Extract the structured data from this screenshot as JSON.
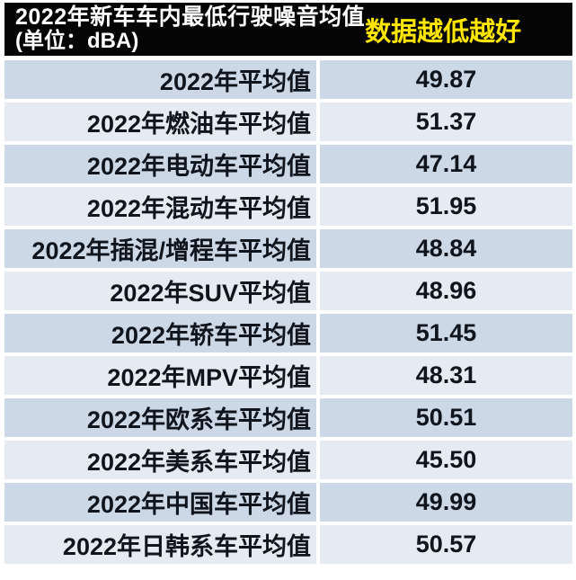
{
  "header": {
    "title_line1": "2022年新车车内最低行驶噪音均值",
    "title_line2": "(单位：dBA)",
    "note": "数据越低越好",
    "bg_color": "#050505",
    "title_color": "#ffffff",
    "note_color": "#fee502"
  },
  "table": {
    "row_alt_colors": [
      "#ccd8e6",
      "#e6ebf3"
    ],
    "text_color": "#10141c",
    "rows": [
      {
        "label": "2022年平均值",
        "value": "49.87"
      },
      {
        "label": "2022年燃油车平均值",
        "value": "51.37"
      },
      {
        "label": "2022年电动车平均值",
        "value": "47.14"
      },
      {
        "label": "2022年混动车平均值",
        "value": "51.95"
      },
      {
        "label": "2022年插混/增程车平均值",
        "value": "48.84"
      },
      {
        "label": "2022年SUV平均值",
        "value": "48.96"
      },
      {
        "label": "2022年轿车平均值",
        "value": "51.45"
      },
      {
        "label": "2022年MPV平均值",
        "value": "48.31"
      },
      {
        "label": "2022年欧系车平均值",
        "value": "50.51"
      },
      {
        "label": "2022年美系车平均值",
        "value": "45.50"
      },
      {
        "label": "2022年中国车平均值",
        "value": "49.99"
      },
      {
        "label": "2022年日韩系车平均值",
        "value": "50.57"
      }
    ]
  },
  "chart_data": {
    "type": "table",
    "title": "2022年新车车内最低行驶噪音均值",
    "unit_label": "(单位：dBA)",
    "annotation": "数据越低越好",
    "unit": "dBA",
    "categories": [
      "2022年平均值",
      "2022年燃油车平均值",
      "2022年电动车平均值",
      "2022年混动车平均值",
      "2022年插混/增程车平均值",
      "2022年SUV平均值",
      "2022年轿车平均值",
      "2022年MPV平均值",
      "2022年欧系车平均值",
      "2022年美系车平均值",
      "2022年中国车平均值",
      "2022年日韩系车平均值"
    ],
    "values": [
      49.87,
      51.37,
      47.14,
      51.95,
      48.84,
      48.96,
      51.45,
      48.31,
      50.51,
      45.5,
      49.99,
      50.57
    ]
  }
}
